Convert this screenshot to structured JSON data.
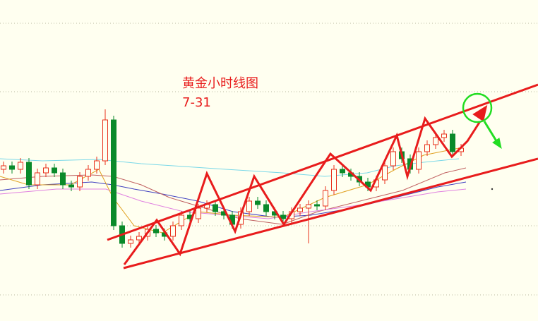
{
  "chart_data": {
    "type": "candlestick",
    "title": "黄金小时线图",
    "subtitle": "7-31",
    "ylim": [
      0,
      455
    ],
    "yticks": [
      37,
      135,
      325,
      422
    ],
    "grid": true,
    "up_color": "#e8301c",
    "down_color": "#0a8a2a",
    "open": [
      215,
      220,
      215,
      225,
      193,
      210,
      217,
      210,
      193,
      190,
      205,
      215,
      227,
      285,
      135,
      110,
      115,
      120,
      130,
      125,
      120,
      135,
      150,
      145,
      160,
      165,
      155,
      150,
      137,
      155,
      170,
      165,
      155,
      150,
      145,
      155,
      160,
      165,
      163,
      185,
      215,
      210,
      205,
      197,
      190,
      200,
      220,
      240,
      230,
      215,
      240,
      250,
      260,
      265,
      240
    ],
    "high": [
      226,
      226,
      231,
      231,
      216,
      223,
      223,
      216,
      199,
      211,
      221,
      233,
      300,
      291,
      141,
      121,
      126,
      136,
      136,
      131,
      141,
      156,
      156,
      166,
      171,
      171,
      161,
      156,
      161,
      176,
      176,
      171,
      161,
      156,
      161,
      166,
      171,
      171,
      191,
      221,
      221,
      216,
      211,
      203,
      206,
      226,
      246,
      246,
      236,
      246,
      256,
      266,
      271,
      271,
      251
    ],
    "low": [
      209,
      209,
      209,
      187,
      187,
      204,
      204,
      187,
      184,
      184,
      199,
      209,
      221,
      129,
      104,
      104,
      109,
      114,
      119,
      114,
      114,
      129,
      139,
      139,
      154,
      149,
      144,
      131,
      131,
      149,
      159,
      149,
      144,
      139,
      139,
      149,
      110,
      157,
      157,
      179,
      204,
      199,
      191,
      184,
      184,
      194,
      214,
      224,
      209,
      209,
      234,
      244,
      254,
      234,
      234
    ],
    "close": [
      220,
      215,
      225,
      193,
      210,
      217,
      210,
      193,
      190,
      205,
      215,
      227,
      285,
      135,
      110,
      115,
      120,
      130,
      125,
      120,
      135,
      150,
      145,
      160,
      165,
      155,
      150,
      137,
      155,
      170,
      165,
      155,
      150,
      145,
      155,
      160,
      165,
      163,
      185,
      215,
      210,
      205,
      197,
      190,
      200,
      220,
      240,
      230,
      215,
      240,
      250,
      260,
      265,
      240,
      245
    ]
  }
}
